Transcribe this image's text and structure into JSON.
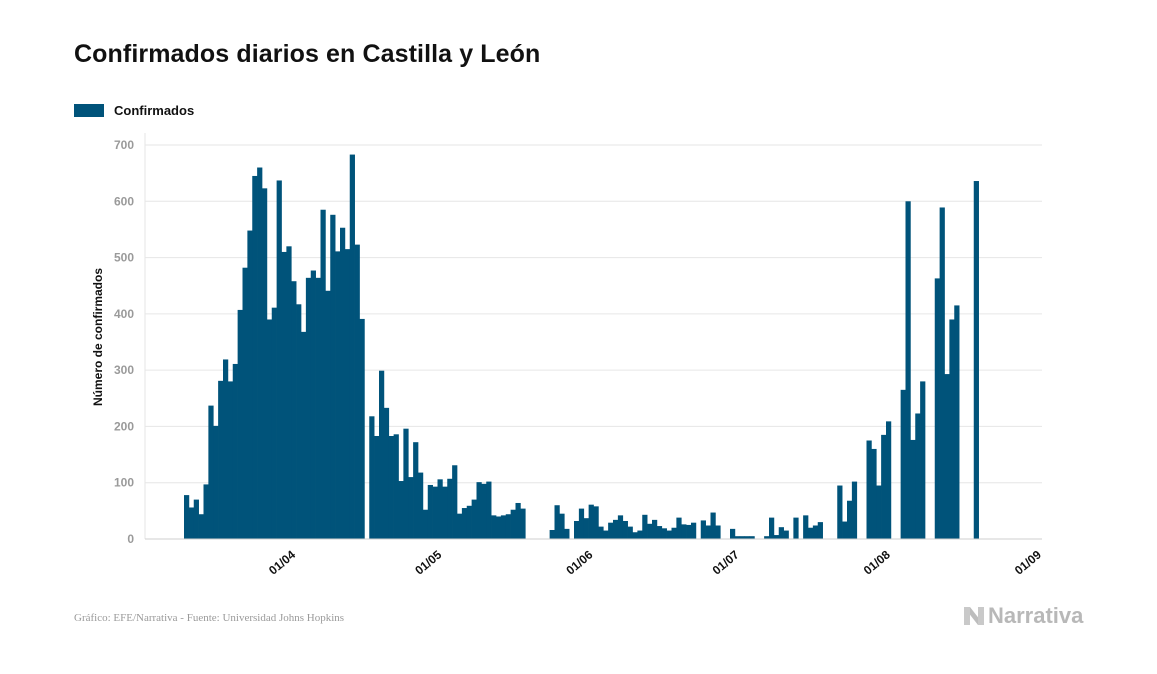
{
  "header": {
    "title": "Confirmados diarios en Castilla y León"
  },
  "legend": {
    "label": "Confirmados"
  },
  "footer": {
    "source": "Gráfico: EFE/Narrativa - Fuente: Universidad Johns Hopkins"
  },
  "brand": {
    "name": "Narrativa",
    "icon": "narrativa-logo-icon"
  },
  "colors": {
    "bar": "#00537a",
    "grid": "#e6e6e6",
    "tick_text": "#9a9a9a",
    "text": "#111111"
  },
  "chart_data": {
    "type": "bar",
    "title": "Confirmados diarios en Castilla y León",
    "xlabel": "",
    "ylabel": "Número de confirmados",
    "ylim": [
      0,
      700
    ],
    "yticks": [
      0,
      100,
      200,
      300,
      400,
      500,
      600,
      700
    ],
    "xlim": [
      "2020-03-01",
      "2020-09-01"
    ],
    "xticks": [
      "01/04",
      "01/05",
      "01/06",
      "01/07",
      "01/08",
      "01/09"
    ],
    "grid": true,
    "legend_position": "top-left",
    "series": [
      {
        "name": "Confirmados",
        "start_date": "2020-03-09",
        "values": [
          78,
          56,
          70,
          44,
          97,
          237,
          201,
          281,
          319,
          280,
          311,
          407,
          482,
          548,
          645,
          660,
          623,
          390,
          411,
          637,
          510,
          520,
          458,
          417,
          368,
          464,
          477,
          464,
          585,
          441,
          576,
          511,
          553,
          515,
          683,
          523,
          391,
          null,
          218,
          183,
          299,
          233,
          183,
          186,
          103,
          196,
          110,
          172,
          118,
          52,
          96,
          93,
          106,
          93,
          107,
          131,
          45,
          55,
          59,
          70,
          101,
          98,
          102,
          42,
          40,
          42,
          44,
          52,
          64,
          54,
          null,
          null,
          null,
          null,
          null,
          16,
          60,
          45,
          18,
          null,
          32,
          54,
          37,
          61,
          58,
          22,
          15,
          29,
          34,
          42,
          32,
          22,
          12,
          15,
          43,
          27,
          34,
          23,
          19,
          15,
          20,
          38,
          26,
          25,
          29,
          null,
          33,
          24,
          47,
          24,
          null,
          null,
          18,
          5,
          5,
          5,
          5,
          null,
          null,
          5,
          38,
          7,
          21,
          15,
          null,
          38,
          null,
          42,
          20,
          24,
          30,
          null,
          null,
          null,
          95,
          31,
          68,
          102,
          null,
          null,
          175,
          160,
          95,
          185,
          209,
          null,
          null,
          265,
          600,
          176,
          223,
          280,
          null,
          null,
          463,
          589,
          293,
          390,
          415,
          null,
          null,
          null,
          636
        ]
      }
    ]
  }
}
